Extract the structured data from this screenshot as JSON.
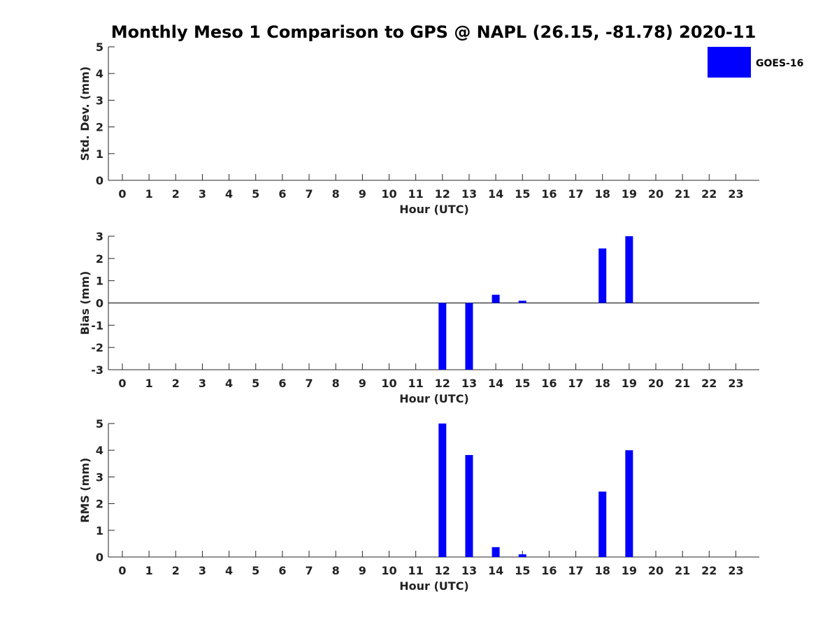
{
  "chart_data": {
    "title": "Monthly Meso 1 Comparison to GPS @ NAPL (26.15, -81.78) 2020-11",
    "legend": {
      "entries": [
        {
          "label": "GOES-16",
          "color": "#0000ff"
        }
      ],
      "placement": "top-right"
    },
    "bar_color": "#0000ff",
    "charts": [
      {
        "type": "bar",
        "xlabel": "Hour (UTC)",
        "ylabel": "Std. Dev. (mm)",
        "ylim": [
          0,
          5
        ],
        "yticks": [
          "0",
          "1",
          "2",
          "3",
          "4",
          "5"
        ],
        "categories": [
          "0",
          "1",
          "2",
          "3",
          "4",
          "5",
          "6",
          "7",
          "8",
          "9",
          "10",
          "11",
          "12",
          "13",
          "14",
          "15",
          "16",
          "17",
          "18",
          "19",
          "20",
          "21",
          "22",
          "23"
        ],
        "values": [
          null,
          null,
          null,
          null,
          null,
          null,
          null,
          null,
          null,
          null,
          null,
          null,
          null,
          null,
          null,
          null,
          null,
          null,
          null,
          null,
          null,
          null,
          null,
          null
        ],
        "zero_line": false
      },
      {
        "type": "bar",
        "xlabel": "Hour (UTC)",
        "ylabel": "Bias (mm)",
        "ylim": [
          -3,
          3
        ],
        "yticks": [
          "-3",
          "-2",
          "-1",
          "0",
          "1",
          "2",
          "3"
        ],
        "categories": [
          "0",
          "1",
          "2",
          "3",
          "4",
          "5",
          "6",
          "7",
          "8",
          "9",
          "10",
          "11",
          "12",
          "13",
          "14",
          "15",
          "16",
          "17",
          "18",
          "19",
          "20",
          "21",
          "22",
          "23"
        ],
        "values": [
          null,
          null,
          null,
          null,
          null,
          null,
          null,
          null,
          null,
          null,
          null,
          null,
          -3.0,
          -3.0,
          0.37,
          0.1,
          null,
          null,
          2.45,
          3.0,
          null,
          null,
          null,
          null
        ],
        "zero_line": true
      },
      {
        "type": "bar",
        "xlabel": "Hour (UTC)",
        "ylabel": "RMS (mm)",
        "ylim": [
          0,
          5
        ],
        "yticks": [
          "0",
          "1",
          "2",
          "3",
          "4",
          "5"
        ],
        "categories": [
          "0",
          "1",
          "2",
          "3",
          "4",
          "5",
          "6",
          "7",
          "8",
          "9",
          "10",
          "11",
          "12",
          "13",
          "14",
          "15",
          "16",
          "17",
          "18",
          "19",
          "20",
          "21",
          "22",
          "23"
        ],
        "values": [
          null,
          null,
          null,
          null,
          null,
          null,
          null,
          null,
          null,
          null,
          null,
          null,
          5.0,
          3.82,
          0.37,
          0.1,
          null,
          null,
          2.45,
          4.0,
          null,
          null,
          null,
          null
        ],
        "zero_line": false
      }
    ]
  }
}
